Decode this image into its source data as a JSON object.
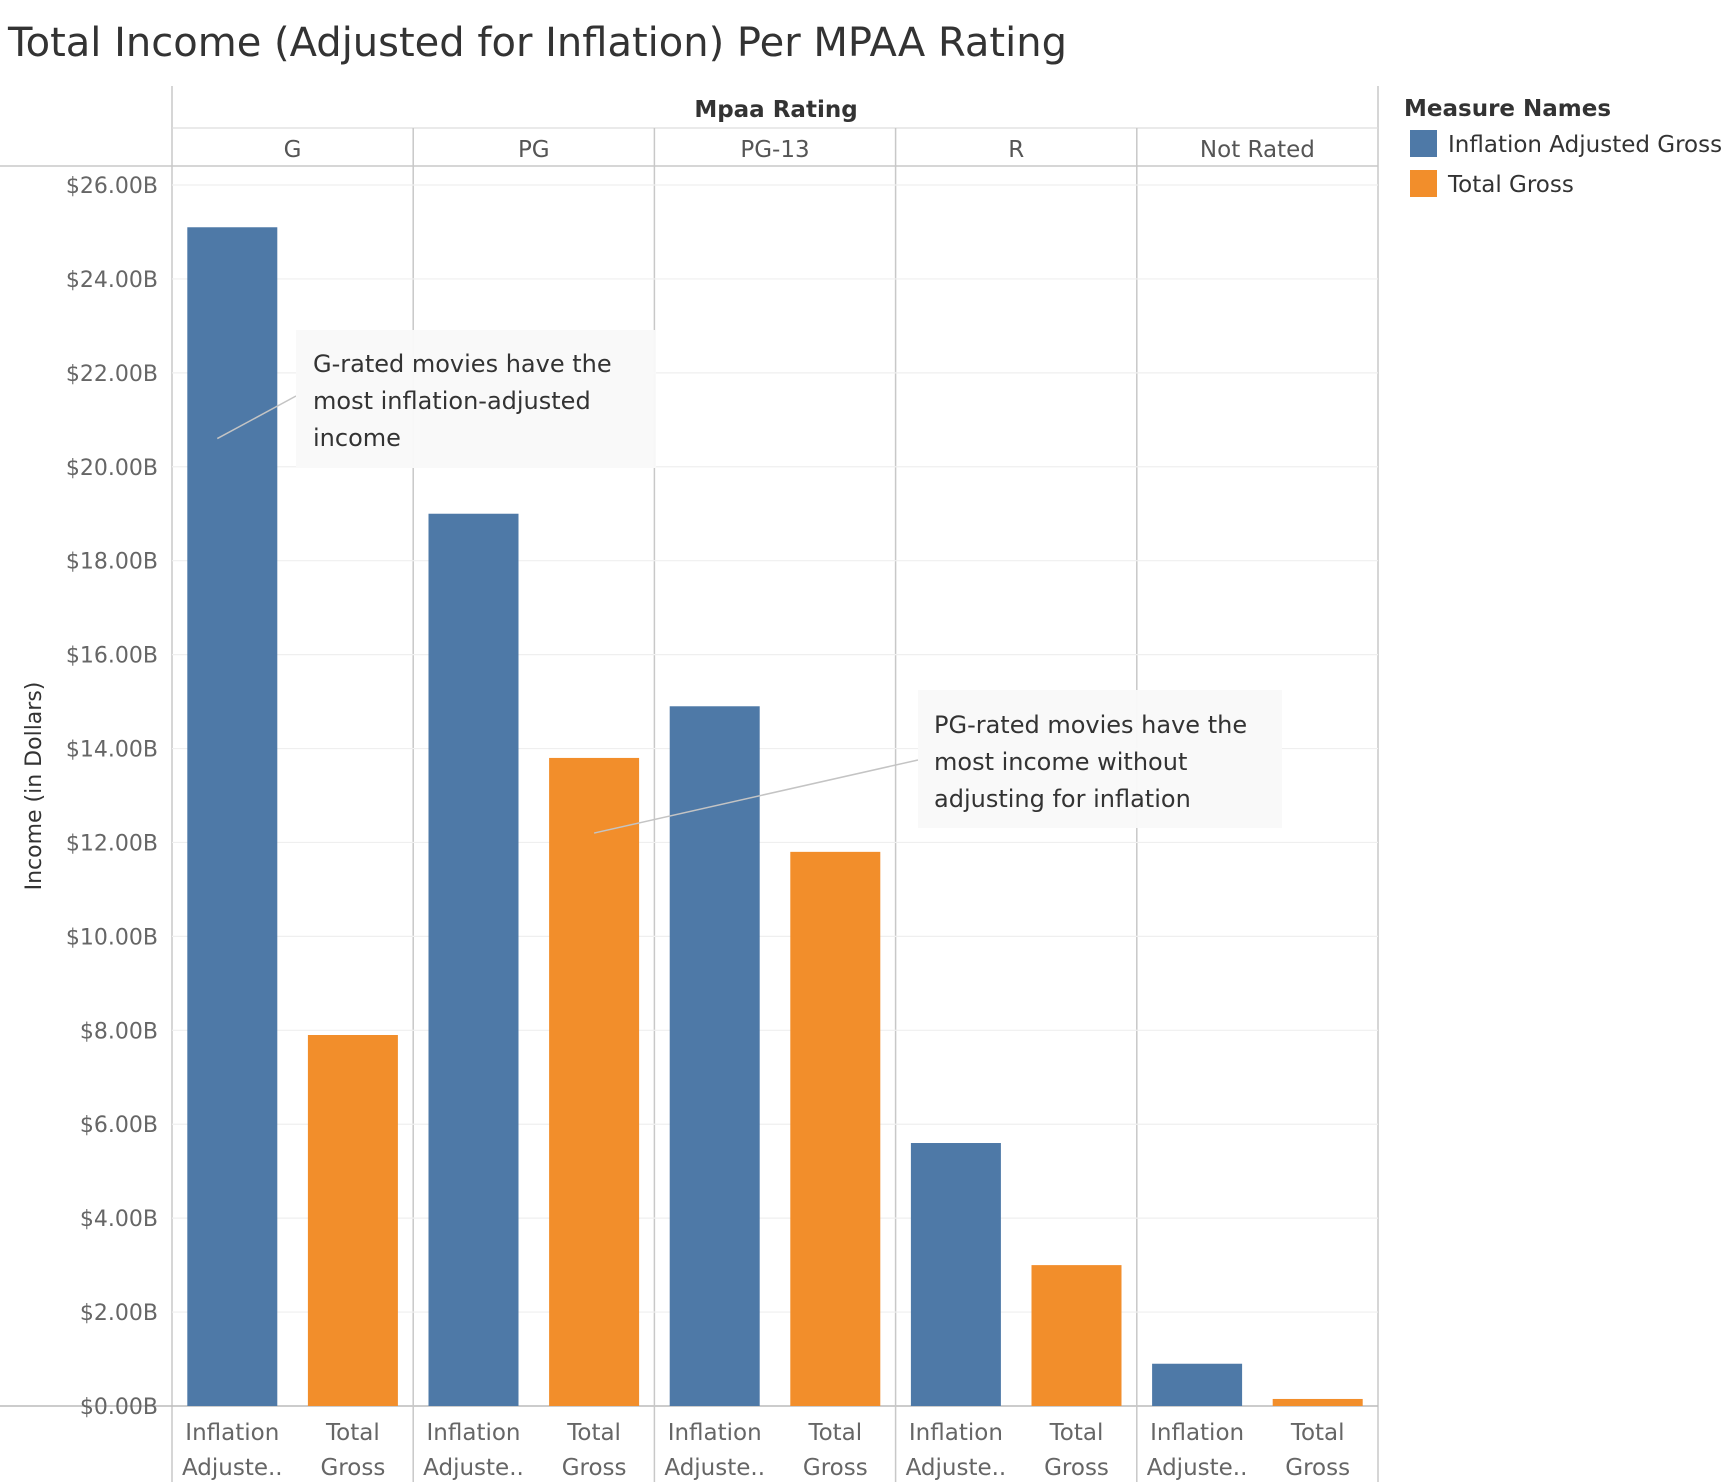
{
  "chart_data": {
    "type": "bar",
    "title": "Total Income (Adjusted for Inflation) Per MPAA Rating",
    "column_header": "Mpaa Rating",
    "categories": [
      "G",
      "PG",
      "PG-13",
      "R",
      "Not Rated"
    ],
    "ylabel": "Income (in Dollars)",
    "ylim": [
      0,
      26
    ],
    "y_unit": "billions of dollars",
    "y_ticks": [
      "$0.00B",
      "$2.00B",
      "$4.00B",
      "$6.00B",
      "$8.00B",
      "$10.00B",
      "$12.00B",
      "$14.00B",
      "$16.00B",
      "$18.00B",
      "$20.00B",
      "$22.00B",
      "$24.00B",
      "$26.00B"
    ],
    "y_tick_values": [
      0,
      2,
      4,
      6,
      8,
      10,
      12,
      14,
      16,
      18,
      20,
      22,
      24,
      26
    ],
    "x_labels": {
      "Inflation Adjusted Gross": [
        "Inflation",
        "Adjuste.."
      ],
      "Total Gross": [
        "Total",
        "Gross"
      ]
    },
    "series": [
      {
        "name": "Inflation Adjusted Gross",
        "color": "#4e79a7",
        "values": [
          25.1,
          19.0,
          14.9,
          5.6,
          0.9
        ]
      },
      {
        "name": "Total Gross",
        "color": "#f28e2b",
        "values": [
          7.9,
          13.8,
          11.8,
          3.0,
          0.15
        ]
      }
    ],
    "legend": {
      "title": "Measure Names",
      "placement": "right",
      "items": [
        "Inflation Adjusted Gross",
        "Total Gross"
      ]
    },
    "grid": true,
    "annotations": [
      {
        "lines": [
          "G-rated movies have the",
          "most inflation-adjusted",
          "income"
        ],
        "category": "G",
        "series": "Inflation Adjusted Gross",
        "target_value": 20.6
      },
      {
        "lines": [
          "PG-rated movies have the",
          "most income without",
          "adjusting for inflation"
        ],
        "category": "PG",
        "series": "Total Gross",
        "target_value": 12.2
      }
    ]
  }
}
